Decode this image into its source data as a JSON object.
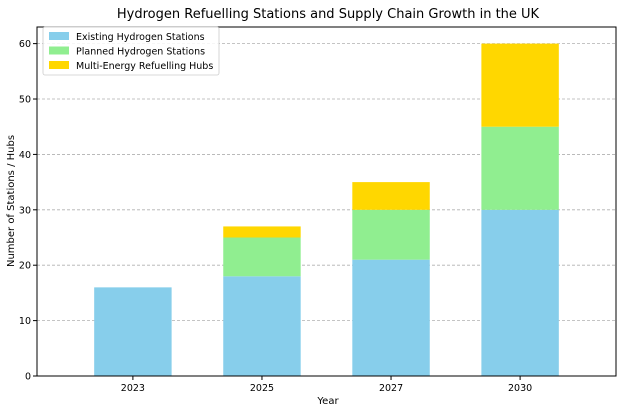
{
  "chart_data": {
    "type": "bar",
    "stacked": true,
    "title": "Hydrogen Refuelling Stations and Supply Chain Growth in the UK",
    "xlabel": "Year",
    "ylabel": "Number of Stations / Hubs",
    "categories": [
      "2023",
      "2025",
      "2027",
      "2030"
    ],
    "ylim": [
      0,
      63
    ],
    "yticks": [
      0,
      10,
      20,
      30,
      40,
      50,
      60
    ],
    "grid": true,
    "legend_position": "top-left",
    "series": [
      {
        "name": "Existing Hydrogen Stations",
        "color": "#87CEEB",
        "values": [
          16,
          18,
          21,
          30
        ]
      },
      {
        "name": "Planned Hydrogen Stations",
        "color": "#90EE90",
        "values": [
          0,
          7,
          9,
          15
        ]
      },
      {
        "name": "Multi-Energy Refuelling Hubs",
        "color": "#FFD700",
        "values": [
          0,
          2,
          5,
          15
        ]
      }
    ]
  }
}
